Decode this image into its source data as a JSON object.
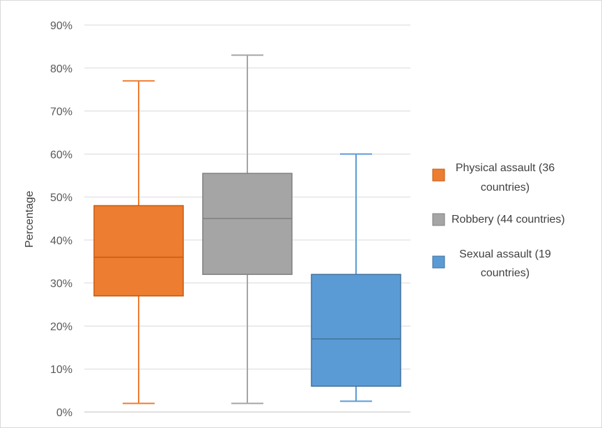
{
  "chart_data": {
    "type": "box",
    "ylabel": "Percentage",
    "ylim": [
      0,
      90
    ],
    "yticks": [
      "0%",
      "10%",
      "20%",
      "30%",
      "40%",
      "50%",
      "60%",
      "70%",
      "80%",
      "90%"
    ],
    "ytick_values": [
      0,
      10,
      20,
      30,
      40,
      50,
      60,
      70,
      80,
      90
    ],
    "grid": true,
    "legend_position": "right",
    "series": [
      {
        "name": "Physical assault (36 countries)",
        "legend_lines": [
          "Physical assault (36",
          "countries)"
        ],
        "color": "#ED7D31",
        "stroke": "#C55A11",
        "min": 2,
        "q1": 27,
        "median": 36,
        "q3": 48,
        "max": 77
      },
      {
        "name": "Robbery (44 countries)",
        "legend_lines": [
          "Robbery (44 countries)"
        ],
        "color": "#A5A5A5",
        "stroke": "#7F7F7F",
        "min": 2,
        "q1": 32,
        "median": 45,
        "q3": 55.5,
        "max": 83
      },
      {
        "name": "Sexual assault (19 countries)",
        "legend_lines": [
          "Sexual assault (19",
          "countries)"
        ],
        "color": "#5B9BD5",
        "stroke": "#41719C",
        "min": 2.5,
        "q1": 6,
        "median": 17,
        "q3": 32,
        "max": 60
      }
    ]
  }
}
